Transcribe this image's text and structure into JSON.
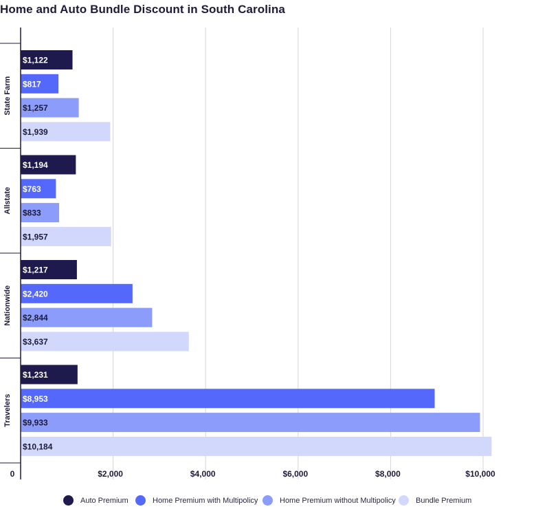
{
  "chart_data": {
    "type": "bar",
    "orientation": "horizontal",
    "title": "Home and Auto Bundle Discount in South Carolina",
    "categories": [
      "State Farm",
      "Allstate",
      "Nationwide",
      "Travelers"
    ],
    "series": [
      {
        "name": "Auto Premium",
        "color": "#1f1a4d",
        "values": [
          1122,
          1194,
          1217,
          1231
        ],
        "labels": [
          "$1,122",
          "$1,194",
          "$1,217",
          "$1,231"
        ]
      },
      {
        "name": "Home Premium with Multipolicy",
        "color": "#5469fc",
        "values": [
          817,
          763,
          2420,
          8953
        ],
        "labels": [
          "$817",
          "$763",
          "$2,420",
          "$8,953"
        ]
      },
      {
        "name": "Home Premium without Multipolicy",
        "color": "#8b9cfb",
        "values": [
          1257,
          833,
          2844,
          9933
        ],
        "labels": [
          "$1,257",
          "$833",
          "$2,844",
          "$9,933"
        ]
      },
      {
        "name": "Bundle Premium",
        "color": "#d2d8fb",
        "values": [
          1939,
          1957,
          3637,
          10184
        ],
        "labels": [
          "$1,939",
          "$1,957",
          "$3,637",
          "$10,184"
        ]
      }
    ],
    "xlim": [
      0,
      10000
    ],
    "xticks": [
      0,
      2000,
      4000,
      6000,
      8000,
      10000
    ],
    "xtick_labels": [
      "0",
      "$2,000",
      "$4,000",
      "$6,000",
      "$8,000",
      "$10,000"
    ],
    "grid": true,
    "legend_position": "bottom"
  }
}
